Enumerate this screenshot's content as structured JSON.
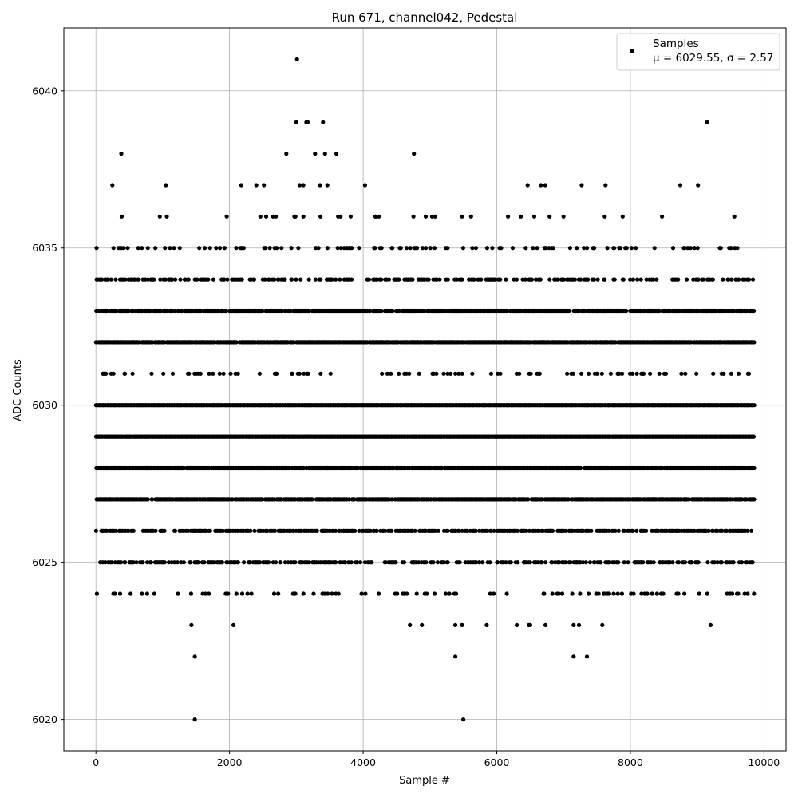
{
  "chart_data": {
    "type": "scatter",
    "title": "Run 671, channel042, Pedestal",
    "xlabel": "Sample #",
    "ylabel": "ADC Counts",
    "xlim": [
      -480,
      10330
    ],
    "ylim": [
      6019.0,
      6042.0
    ],
    "xticks": [
      0,
      2000,
      4000,
      6000,
      8000,
      10000
    ],
    "yticks": [
      6020,
      6025,
      6030,
      6035,
      6040
    ],
    "grid": true,
    "legend_position": "top-right",
    "series": [
      {
        "name": "Samples",
        "legend_stats": "μ = 6029.55, σ = 2.57",
        "color": "#000000",
        "n_samples": 9850,
        "level_density": {
          "6029": 1.0,
          "6030": 1.0,
          "6028": 0.95,
          "6032": 0.9,
          "6033": 0.8,
          "6027": 0.8,
          "6026": 0.55,
          "6025": 0.4,
          "6034": 0.35,
          "6031": 0.15,
          "6024": 0.12,
          "6035": 0.15,
          "6036": 0.04,
          "6037": 0.03
        },
        "outliers": [
          [
            1480,
            6020
          ],
          [
            5500,
            6020
          ],
          [
            1480,
            6022
          ],
          [
            5380,
            6022
          ],
          [
            7150,
            6022
          ],
          [
            7350,
            6022
          ],
          [
            1430,
            6023
          ],
          [
            2060,
            6023
          ],
          [
            4700,
            6023
          ],
          [
            4880,
            6023
          ],
          [
            5380,
            6023
          ],
          [
            5480,
            6023
          ],
          [
            5850,
            6023
          ],
          [
            6300,
            6023
          ],
          [
            6480,
            6023
          ],
          [
            6500,
            6023
          ],
          [
            6730,
            6023
          ],
          [
            7150,
            6023
          ],
          [
            7230,
            6023
          ],
          [
            7580,
            6023
          ],
          [
            9200,
            6023
          ],
          [
            380,
            6038
          ],
          [
            2850,
            6038
          ],
          [
            3280,
            6038
          ],
          [
            3430,
            6038
          ],
          [
            3600,
            6038
          ],
          [
            4760,
            6038
          ],
          [
            3000,
            6039
          ],
          [
            3150,
            6039
          ],
          [
            3170,
            6039
          ],
          [
            3400,
            6039
          ],
          [
            9150,
            6039
          ],
          [
            3010,
            6041
          ]
        ]
      }
    ]
  }
}
